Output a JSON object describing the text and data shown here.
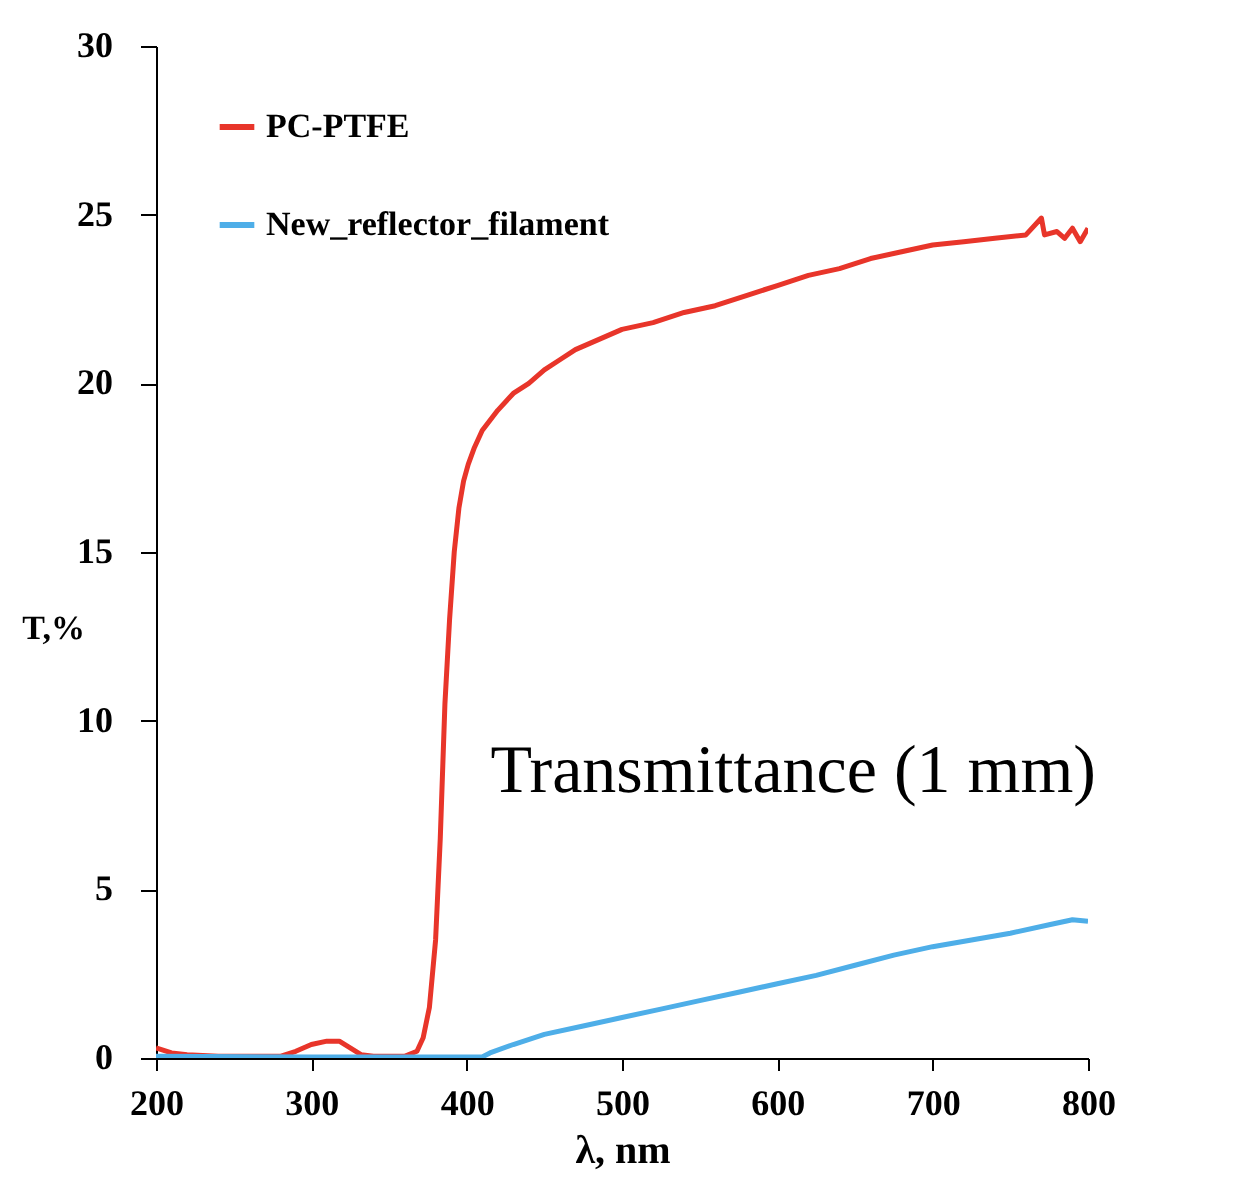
{
  "chart_data": {
    "type": "line",
    "xlabel": "λ, nm",
    "ylabel": "T,%",
    "xlim": [
      200,
      800
    ],
    "xticks": [
      200,
      300,
      400,
      500,
      600,
      700,
      800
    ],
    "ylim": [
      0,
      30
    ],
    "yticks": [
      0,
      5,
      10,
      15,
      20,
      25,
      30
    ],
    "grid": false,
    "legend": "top left",
    "marker": "none",
    "line_style": "solid",
    "annotations": [
      "Transmittance (1 mm)"
    ],
    "series": [
      {
        "name": "PC-PTFE",
        "color": "#e8352a",
        "x": [
          200,
          210,
          220,
          240,
          280,
          290,
          300,
          310,
          318,
          325,
          332,
          340,
          360,
          368,
          372,
          376,
          380,
          383,
          386,
          389,
          392,
          395,
          398,
          401,
          405,
          410,
          420,
          430,
          440,
          450,
          460,
          470,
          480,
          490,
          500,
          520,
          540,
          560,
          580,
          600,
          620,
          640,
          660,
          680,
          700,
          720,
          740,
          760,
          770,
          772,
          780,
          785,
          790,
          795,
          800
        ],
        "values": [
          0.3,
          0.15,
          0.1,
          0.05,
          0.05,
          0.2,
          0.4,
          0.5,
          0.5,
          0.3,
          0.1,
          0.05,
          0.05,
          0.2,
          0.6,
          1.5,
          3.5,
          6.5,
          10.5,
          13,
          15,
          16.3,
          17.1,
          17.6,
          18.1,
          18.6,
          19.2,
          19.7,
          20.0,
          20.4,
          20.7,
          21.0,
          21.2,
          21.4,
          21.6,
          21.8,
          22.1,
          22.3,
          22.6,
          22.9,
          23.2,
          23.4,
          23.7,
          23.9,
          24.1,
          24.2,
          24.3,
          24.4,
          24.9,
          24.4,
          24.5,
          24.3,
          24.6,
          24.2,
          24.6
        ]
      },
      {
        "name": "New_reflector_filament",
        "color": "#4eaee8",
        "x": [
          200,
          300,
          400,
          410,
          415,
          430,
          450,
          475,
          500,
          525,
          550,
          575,
          600,
          625,
          650,
          675,
          700,
          725,
          750,
          775,
          790,
          800
        ],
        "values": [
          0.05,
          0.03,
          0.03,
          0.03,
          0.15,
          0.4,
          0.7,
          0.95,
          1.2,
          1.45,
          1.7,
          1.95,
          2.2,
          2.45,
          2.75,
          3.05,
          3.3,
          3.5,
          3.7,
          3.95,
          4.1,
          4.05
        ]
      }
    ]
  }
}
